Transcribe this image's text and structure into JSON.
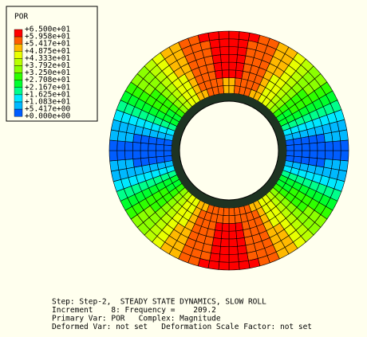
{
  "legend": {
    "title": "POR",
    "labels": [
      "+6.500e+01",
      "+5.958e+01",
      "+5.417e+01",
      "+4.875e+01",
      "+4.333e+01",
      "+3.792e+01",
      "+3.250e+01",
      "+2.708e+01",
      "+2.167e+01",
      "+1.625e+01",
      "+1.083e+01",
      "+5.417e+00",
      "+0.000e+00"
    ],
    "colors": [
      "#ff0000",
      "#ff5d00",
      "#ffb900",
      "#e8ff00",
      "#b9ff00",
      "#8bff00",
      "#2eff00",
      "#00ff2e",
      "#00ff8b",
      "#00e8ff",
      "#00b9ff",
      "#005dff",
      "#0000ff"
    ]
  },
  "info": {
    "lines": [
      "Step: Step-2,  STEADY STATE DYNAMICS, SLOW ROLL",
      "Increment    8: Frequency =    209.2",
      "Primary Var: POR   Complex: Magnitude",
      "Deformed Var: not set   Deformation Scale Factor: not set"
    ]
  }
}
